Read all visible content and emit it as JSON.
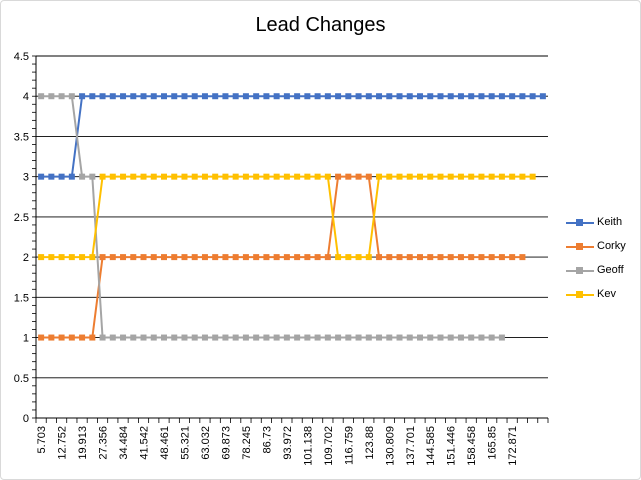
{
  "chart_data": {
    "type": "line",
    "title": "Lead Changes",
    "xlabel": "",
    "ylabel": "",
    "ylim": [
      0,
      4.5
    ],
    "yticks": [
      "0",
      "0.5",
      "1",
      "1.5",
      "2",
      "2.5",
      "3",
      "3.5",
      "4",
      "4.5"
    ],
    "x_tick_labels": [
      "5.703",
      "12.752",
      "19.913",
      "27.356",
      "34.484",
      "41.542",
      "48.461",
      "55.321",
      "63.032",
      "69.873",
      "78.245",
      "86.73",
      "93.972",
      "101.138",
      "109.702",
      "116.759",
      "123.88",
      "130.809",
      "137.701",
      "144.585",
      "151.446",
      "158.458",
      "165.85",
      "172.871"
    ],
    "num_points": 50,
    "grid": true,
    "legend_position": "right",
    "series": [
      {
        "name": "Keith",
        "color": "#4472C4",
        "values": [
          3,
          3,
          3,
          3,
          4,
          4,
          4,
          4,
          4,
          4,
          4,
          4,
          4,
          4,
          4,
          4,
          4,
          4,
          4,
          4,
          4,
          4,
          4,
          4,
          4,
          4,
          4,
          4,
          4,
          4,
          4,
          4,
          4,
          4,
          4,
          4,
          4,
          4,
          4,
          4,
          4,
          4,
          4,
          4,
          4,
          4,
          4,
          4,
          4,
          4
        ]
      },
      {
        "name": "Corky",
        "color": "#ED7D31",
        "values": [
          1,
          1,
          1,
          1,
          1,
          1,
          2,
          2,
          2,
          2,
          2,
          2,
          2,
          2,
          2,
          2,
          2,
          2,
          2,
          2,
          2,
          2,
          2,
          2,
          2,
          2,
          2,
          2,
          2,
          3,
          3,
          3,
          3,
          2,
          2,
          2,
          2,
          2,
          2,
          2,
          2,
          2,
          2,
          2,
          2,
          2,
          2,
          2,
          null,
          null
        ]
      },
      {
        "name": "Geoff",
        "color": "#A5A5A5",
        "values": [
          4,
          4,
          4,
          4,
          3,
          3,
          1,
          1,
          1,
          1,
          1,
          1,
          1,
          1,
          1,
          1,
          1,
          1,
          1,
          1,
          1,
          1,
          1,
          1,
          1,
          1,
          1,
          1,
          1,
          1,
          1,
          1,
          1,
          1,
          1,
          1,
          1,
          1,
          1,
          1,
          1,
          1,
          1,
          1,
          1,
          1,
          null,
          null,
          null,
          null
        ]
      },
      {
        "name": "Kev",
        "color": "#FFC000",
        "values": [
          2,
          2,
          2,
          2,
          2,
          2,
          3,
          3,
          3,
          3,
          3,
          3,
          3,
          3,
          3,
          3,
          3,
          3,
          3,
          3,
          3,
          3,
          3,
          3,
          3,
          3,
          3,
          3,
          3,
          2,
          2,
          2,
          2,
          3,
          3,
          3,
          3,
          3,
          3,
          3,
          3,
          3,
          3,
          3,
          3,
          3,
          3,
          3,
          3,
          null
        ]
      }
    ]
  }
}
